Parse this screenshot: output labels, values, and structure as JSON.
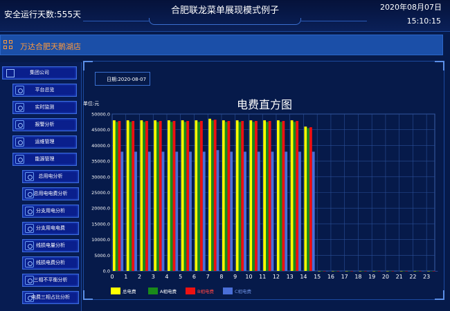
{
  "header": {
    "safe_days": "安全运行天数:555天",
    "title": "合肥联龙菜单展现模式例子",
    "date": "2020年08月07日",
    "time": "15:10:15"
  },
  "store": {
    "name": "万达合肥天鹅湖店"
  },
  "sidebar": {
    "items": [
      {
        "label": "集团公司"
      },
      {
        "label": "平台总览"
      },
      {
        "label": "实时监测"
      },
      {
        "label": "报警分析"
      },
      {
        "label": "运维管理"
      },
      {
        "label": "能源管理"
      },
      {
        "label": "总用电分析"
      },
      {
        "label": "总用电电费分析"
      },
      {
        "label": "分支用电分析"
      },
      {
        "label": "分支用电电费"
      },
      {
        "label": "线损电量分析"
      },
      {
        "label": "线损电费分析"
      },
      {
        "label": "三相不平衡分析"
      },
      {
        "label": "电费三相占比分析"
      }
    ]
  },
  "filter": {
    "date_label": "日期:2020-08-07"
  },
  "colors": {
    "total": "#ffff00",
    "a": "#1a8a1a",
    "b": "#ee1111",
    "c": "#4a6fd8",
    "accent": "#ff9a3c"
  },
  "chart_data": {
    "type": "bar",
    "title": "电费直方图",
    "ylabel": "单位:元",
    "ylim": [
      0,
      50000
    ],
    "yticks": [
      "0.0",
      "5000.0",
      "10000.0",
      "15000.0",
      "20000.0",
      "25000.0",
      "30000.0",
      "35000.0",
      "40000.0",
      "45000.0",
      "50000.0"
    ],
    "categories": [
      "0",
      "1",
      "2",
      "3",
      "4",
      "5",
      "6",
      "7",
      "8",
      "9",
      "10",
      "11",
      "12",
      "13",
      "14",
      "15",
      "16",
      "17",
      "18",
      "19",
      "20",
      "21",
      "22",
      "23"
    ],
    "series": [
      {
        "name": "总电费",
        "color": "#ffff00",
        "values": [
          48000,
          48000,
          48000,
          48000,
          48000,
          48000,
          48000,
          48500,
          48000,
          48000,
          48000,
          48000,
          48000,
          48000,
          46000,
          0,
          0,
          0,
          0,
          0,
          0,
          0,
          0,
          0
        ]
      },
      {
        "name": "A相电费",
        "color": "#1a8a1a",
        "values": [
          47500,
          47500,
          47500,
          47500,
          47500,
          47500,
          47500,
          48000,
          47500,
          47500,
          47500,
          47500,
          47500,
          47500,
          45500,
          0,
          0,
          0,
          0,
          0,
          0,
          0,
          0,
          0
        ]
      },
      {
        "name": "B相电费",
        "color": "#ee1111",
        "values": [
          47800,
          47800,
          47800,
          47800,
          47800,
          47800,
          47800,
          48200,
          47800,
          47800,
          47800,
          47800,
          47800,
          47800,
          45800,
          0,
          0,
          0,
          0,
          0,
          0,
          0,
          0,
          0
        ]
      },
      {
        "name": "C相电费",
        "color": "#4a6fd8",
        "values": [
          38000,
          38000,
          38000,
          38000,
          38000,
          38000,
          38000,
          38500,
          38000,
          38000,
          38000,
          38000,
          38000,
          38000,
          38000,
          0,
          0,
          0,
          0,
          0,
          0,
          0,
          0,
          0
        ]
      }
    ],
    "legend_position": "bottom-left",
    "grid": true
  }
}
